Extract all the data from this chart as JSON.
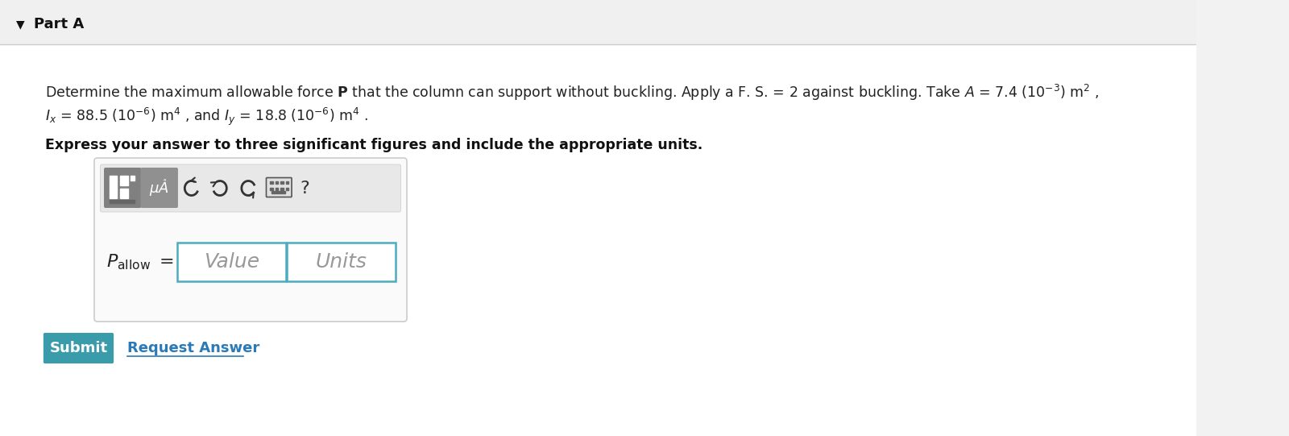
{
  "background_color": "#f2f2f2",
  "content_background": "#ffffff",
  "part_label": "Part A",
  "main_text_line1": "Determine the maximum allowable force $\\mathbf{P}$ that the column can support without buckling. Apply a F. S. = 2 against buckling. Take $A$ = 7.4 $(10^{-3})$ m$^2$ ,",
  "main_text_line2": "$I_x$ = 88.5 $(10^{-6})$ m$^4$ , and $I_y$ = 18.8 $(10^{-6})$ m$^4$ .",
  "bold_text": "Express your answer to three significant figures and include the appropriate units.",
  "value_placeholder": "Value",
  "units_placeholder": "Units",
  "submit_text": "Submit",
  "request_answer_text": "Request Answer",
  "submit_bg": "#3a9bab",
  "submit_text_color": "#ffffff",
  "request_answer_color": "#2a7ab8",
  "toolbar_bg": "#e8e8e8",
  "btn1_bg": "#888888",
  "btn2_bg": "#999999",
  "icon_color": "#333333",
  "box_border_color": "#cccccc",
  "input_border_color": "#4aacbe",
  "part_label_color": "#111111",
  "divider_color": "#cccccc",
  "header_bg": "#f0f0f0",
  "text_color": "#222222"
}
